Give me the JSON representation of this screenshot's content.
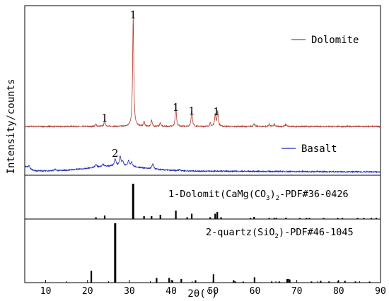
{
  "chart_data": {
    "type": "line",
    "xlabel": "2θ(°)",
    "ylabel": "Intensity/counts",
    "xlim": [
      5,
      90
    ],
    "xticks": [
      10,
      20,
      30,
      40,
      50,
      60,
      70,
      80,
      90
    ],
    "grid": false,
    "series": [
      {
        "name": "Dolomite",
        "color": "#b03a2e",
        "baseline": 0.0,
        "noise": 0.15,
        "peaks": [
          {
            "x": 22.0,
            "h": 0.3
          },
          {
            "x": 24.1,
            "h": 0.9
          },
          {
            "x": 30.9,
            "h": 14.0
          },
          {
            "x": 33.5,
            "h": 0.6
          },
          {
            "x": 35.3,
            "h": 0.8
          },
          {
            "x": 37.4,
            "h": 0.5
          },
          {
            "x": 41.1,
            "h": 2.5
          },
          {
            "x": 44.9,
            "h": 2.2
          },
          {
            "x": 49.3,
            "h": 0.4
          },
          {
            "x": 50.5,
            "h": 1.6
          },
          {
            "x": 51.1,
            "h": 1.9
          },
          {
            "x": 59.8,
            "h": 0.4
          },
          {
            "x": 63.4,
            "h": 0.3
          },
          {
            "x": 64.6,
            "h": 0.3
          },
          {
            "x": 67.4,
            "h": 0.3
          }
        ]
      },
      {
        "name": "Basalt",
        "color": "#1f2bb5",
        "baseline": 0.0,
        "noise": 0.25,
        "hump": 1.1,
        "peaks": [
          {
            "x": 6.0,
            "h": 0.6
          },
          {
            "x": 12.3,
            "h": 0.3
          },
          {
            "x": 22.0,
            "h": 0.7
          },
          {
            "x": 23.7,
            "h": 0.5
          },
          {
            "x": 26.6,
            "h": 1.6
          },
          {
            "x": 27.8,
            "h": 2.0
          },
          {
            "x": 28.4,
            "h": 1.0
          },
          {
            "x": 29.8,
            "h": 1.2
          },
          {
            "x": 30.5,
            "h": 0.9
          },
          {
            "x": 35.6,
            "h": 1.1
          },
          {
            "x": 42.0,
            "h": 0.3
          }
        ]
      }
    ],
    "peak_labels": [
      {
        "x": 24.1,
        "text": "1"
      },
      {
        "x": 30.9,
        "text": "1"
      },
      {
        "x": 41.1,
        "text": "1"
      },
      {
        "x": 44.9,
        "text": "1"
      },
      {
        "x": 50.8,
        "text": "1"
      },
      {
        "x": 26.6,
        "text": "2"
      }
    ],
    "reference_patterns": [
      {
        "label": "1-Dolomit(CaMg(CO3)2-PDF#36-0426",
        "label_parts": [
          "1-Dolomit(CaMg(CO",
          "3",
          ")",
          "2",
          "-PDF#36-0426"
        ],
        "lines": [
          {
            "x": 22.0,
            "i": 5
          },
          {
            "x": 24.1,
            "i": 10
          },
          {
            "x": 30.9,
            "i": 100
          },
          {
            "x": 33.5,
            "i": 8
          },
          {
            "x": 35.3,
            "i": 8
          },
          {
            "x": 37.4,
            "i": 12
          },
          {
            "x": 41.1,
            "i": 24
          },
          {
            "x": 43.8,
            "i": 5
          },
          {
            "x": 44.9,
            "i": 15
          },
          {
            "x": 49.3,
            "i": 5
          },
          {
            "x": 50.5,
            "i": 15
          },
          {
            "x": 51.0,
            "i": 20
          },
          {
            "x": 51.9,
            "i": 5
          },
          {
            "x": 58.9,
            "i": 3
          },
          {
            "x": 59.8,
            "i": 6
          },
          {
            "x": 63.4,
            "i": 3
          },
          {
            "x": 64.6,
            "i": 3
          },
          {
            "x": 65.1,
            "i": 3
          },
          {
            "x": 67.4,
            "i": 4
          },
          {
            "x": 70.7,
            "i": 3
          },
          {
            "x": 72.3,
            "i": 3
          },
          {
            "x": 73.0,
            "i": 3
          },
          {
            "x": 76.4,
            "i": 3
          },
          {
            "x": 79.8,
            "i": 3
          },
          {
            "x": 80.9,
            "i": 3
          },
          {
            "x": 84.5,
            "i": 3
          },
          {
            "x": 86.0,
            "i": 3
          },
          {
            "x": 87.8,
            "i": 3
          },
          {
            "x": 89.0,
            "i": 3
          }
        ]
      },
      {
        "label": "2-quartz(SiO2)-PDF#46-1045",
        "label_parts": [
          "2-quartz(SiO",
          "2",
          ")-PDF#46-1045"
        ],
        "lines": [
          {
            "x": 20.9,
            "i": 20
          },
          {
            "x": 26.6,
            "i": 100
          },
          {
            "x": 36.5,
            "i": 8
          },
          {
            "x": 39.5,
            "i": 8
          },
          {
            "x": 40.3,
            "i": 4
          },
          {
            "x": 42.4,
            "i": 6
          },
          {
            "x": 45.8,
            "i": 4
          },
          {
            "x": 50.1,
            "i": 14
          },
          {
            "x": 54.9,
            "i": 4
          },
          {
            "x": 55.3,
            "i": 2
          },
          {
            "x": 57.2,
            "i": 1
          },
          {
            "x": 59.9,
            "i": 9
          },
          {
            "x": 64.0,
            "i": 2
          },
          {
            "x": 65.8,
            "i": 2
          },
          {
            "x": 67.7,
            "i": 6
          },
          {
            "x": 68.1,
            "i": 6
          },
          {
            "x": 68.3,
            "i": 5
          },
          {
            "x": 73.5,
            "i": 2
          },
          {
            "x": 75.7,
            "i": 3
          },
          {
            "x": 77.7,
            "i": 2
          },
          {
            "x": 79.9,
            "i": 3
          },
          {
            "x": 81.5,
            "i": 3
          },
          {
            "x": 84.0,
            "i": 2
          },
          {
            "x": 87.4,
            "i": 1
          }
        ]
      }
    ],
    "legend": [
      {
        "name": "Dolomite",
        "color": "#b03a2e",
        "position": "top-right"
      },
      {
        "name": "Basalt",
        "color": "#1f2bb5",
        "position": "right"
      }
    ]
  }
}
